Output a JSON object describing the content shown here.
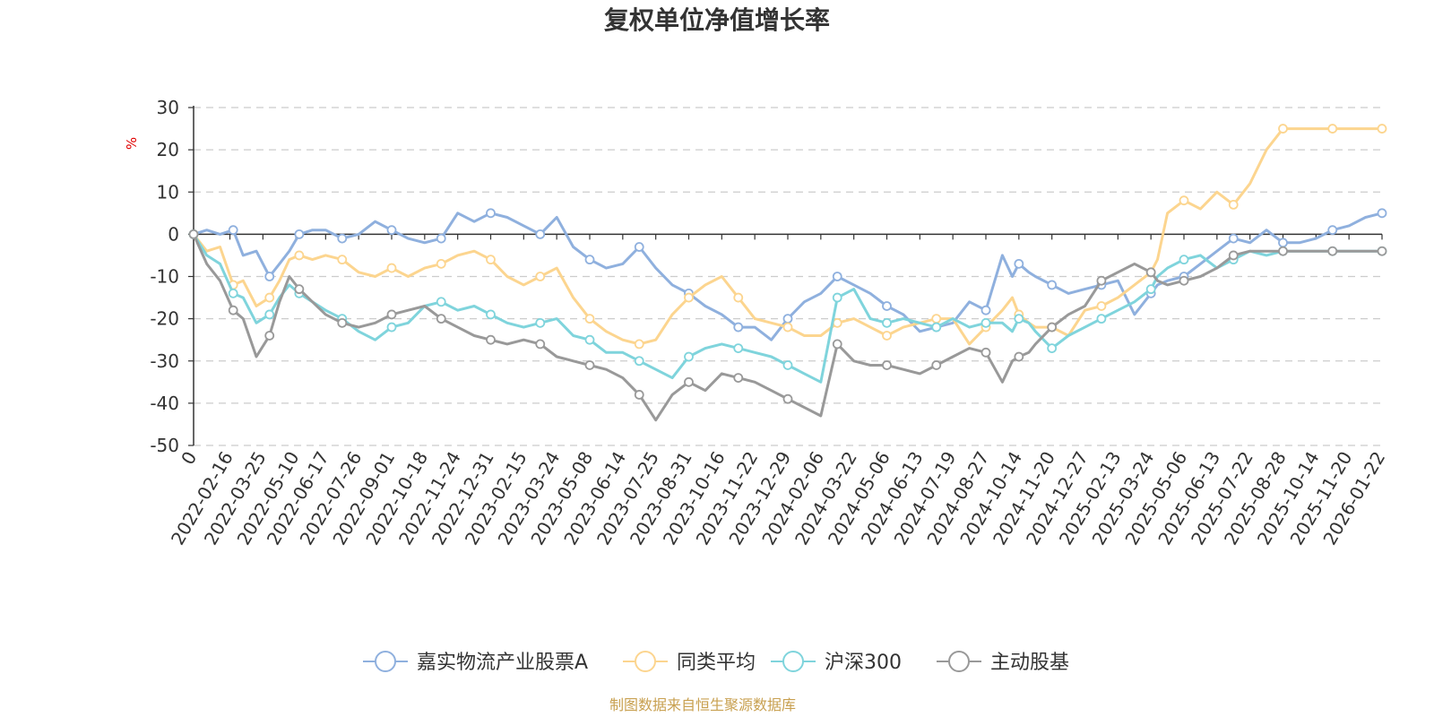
{
  "colors": {
    "jiashi": "#8fb0de",
    "peer": "#fcd58f",
    "hs300": "#7fd4dc",
    "active": "#999999",
    "grid": "#cccccc",
    "axis": "#333333",
    "unit": "#e00000",
    "source": "#c8a050"
  },
  "chart_data": {
    "type": "line",
    "title": "复权单位净值增长率",
    "ylabel": "%",
    "xlabel": "",
    "ylim": [
      -50,
      30
    ],
    "yticks": [
      "30",
      "20",
      "10",
      "0",
      "-10",
      "-20",
      "-30",
      "-40",
      "-50"
    ],
    "ytick_values": [
      30,
      20,
      10,
      0,
      -10,
      -20,
      -30,
      -40,
      -50
    ],
    "grid": true,
    "legend_position": "bottom-center",
    "categories": [
      "0",
      "2022-02-16",
      "2022-03-25",
      "2022-05-10",
      "2022-06-17",
      "2022-07-26",
      "2022-09-01",
      "2022-10-18",
      "2022-11-24",
      "2022-12-31",
      "2023-02-15",
      "2023-03-24",
      "2023-05-08",
      "2023-06-14",
      "2023-07-25",
      "2023-08-31",
      "2023-10-16",
      "2023-11-22",
      "2023-12-29",
      "2024-02-06",
      "2024-03-22",
      "2024-05-06",
      "2024-06-13",
      "2024-07-19",
      "2024-08-27",
      "2024-10-14",
      "2024-11-20",
      "2024-12-27",
      "2025-02-13",
      "2025-03-24",
      "2025-05-06",
      "2025-06-13",
      "2025-07-22",
      "2025-08-28",
      "2025-10-14",
      "2025-11-20",
      "2026-01-22"
    ],
    "x_positions": [
      0,
      1.1,
      2.1,
      3.1,
      4.0,
      5.0,
      6.0,
      7.0,
      8.0,
      9.0,
      10.0,
      11.0,
      12.0,
      13.0,
      14.0,
      15.0,
      16.0,
      17.0,
      18.0,
      19.0,
      20.0,
      21.0,
      22.0,
      23.0,
      24.0,
      25.0,
      26.0,
      27.0,
      28.0,
      29.0,
      30.0,
      31.0,
      32.0,
      33.0,
      34.0,
      35.0,
      36.0
    ],
    "series": [
      {
        "name": "嘉实物流产业股票A",
        "color_key": "jiashi",
        "x": [
          0,
          0.4,
          0.8,
          1.2,
          1.5,
          1.9,
          2.3,
          2.6,
          2.9,
          3.2,
          3.6,
          4.0,
          4.5,
          5.0,
          5.5,
          6.0,
          6.5,
          7.0,
          7.5,
          8.0,
          8.5,
          9.0,
          9.5,
          10.0,
          10.5,
          11.0,
          11.5,
          12.0,
          12.5,
          13.0,
          13.5,
          14.0,
          14.5,
          15.0,
          15.5,
          16.0,
          16.5,
          17.0,
          17.5,
          18.0,
          18.5,
          19.0,
          19.5,
          20.0,
          20.5,
          21.0,
          21.5,
          22.0,
          22.5,
          23.0,
          23.5,
          24.0,
          24.5,
          24.8,
          25.0,
          25.3,
          25.5,
          26.0,
          26.5,
          27.0,
          27.5,
          28.0,
          28.5,
          29.0,
          29.2,
          29.5,
          30.0,
          30.5,
          31.0,
          31.5,
          32.0,
          32.5,
          33.0,
          33.5,
          34.0,
          34.5,
          35.0,
          35.5,
          36.0
        ],
        "values": [
          0,
          1,
          0,
          1,
          -5,
          -4,
          -10,
          -7,
          -4,
          0,
          1,
          1,
          -1,
          0,
          3,
          1,
          -1,
          -2,
          -1,
          5,
          3,
          5,
          4,
          2,
          0,
          4,
          -3,
          -6,
          -8,
          -7,
          -3,
          -8,
          -12,
          -14,
          -17,
          -19,
          -22,
          -22,
          -25,
          -20,
          -16,
          -14,
          -10,
          -12,
          -14,
          -17,
          -19,
          -23,
          -22,
          -21,
          -16,
          -18,
          -5,
          -10,
          -7,
          -9,
          -10,
          -12,
          -14,
          -13,
          -12,
          -11,
          -19,
          -14,
          -12,
          -11,
          -10,
          -7,
          -4,
          -1,
          -2,
          1,
          -2,
          -2,
          -1,
          1,
          2,
          4,
          5
        ]
      },
      {
        "name": "同类平均",
        "color_key": "peer",
        "x": [
          0,
          0.4,
          0.8,
          1.2,
          1.5,
          1.9,
          2.3,
          2.6,
          2.9,
          3.2,
          3.6,
          4.0,
          4.5,
          5.0,
          5.5,
          6.0,
          6.5,
          7.0,
          7.5,
          8.0,
          8.5,
          9.0,
          9.5,
          10.0,
          10.5,
          11.0,
          11.5,
          12.0,
          12.5,
          13.0,
          13.5,
          14.0,
          14.5,
          15.0,
          15.5,
          16.0,
          16.5,
          17.0,
          17.5,
          18.0,
          18.5,
          19.0,
          19.5,
          20.0,
          20.5,
          21.0,
          21.5,
          22.0,
          22.5,
          23.0,
          23.5,
          24.0,
          24.5,
          24.8,
          25.0,
          25.3,
          25.5,
          26.0,
          26.5,
          27.0,
          27.5,
          28.0,
          28.5,
          29.0,
          29.2,
          29.5,
          30.0,
          30.5,
          31.0,
          31.5,
          32.0,
          32.5,
          33.0,
          33.5,
          34.0,
          34.5,
          35.0,
          35.5,
          36.0
        ],
        "values": [
          0,
          -4,
          -3,
          -12,
          -11,
          -17,
          -15,
          -11,
          -6,
          -5,
          -6,
          -5,
          -6,
          -9,
          -10,
          -8,
          -10,
          -8,
          -7,
          -5,
          -4,
          -6,
          -10,
          -12,
          -10,
          -8,
          -15,
          -20,
          -23,
          -25,
          -26,
          -25,
          -19,
          -15,
          -12,
          -10,
          -15,
          -20,
          -21,
          -22,
          -24,
          -24,
          -21,
          -20,
          -22,
          -24,
          -22,
          -21,
          -20,
          -20,
          -26,
          -22,
          -18,
          -15,
          -19,
          -21,
          -22,
          -22,
          -24,
          -18,
          -17,
          -15,
          -12,
          -9,
          -6,
          5,
          8,
          6,
          10,
          7,
          12,
          20,
          25,
          25,
          25,
          25,
          25,
          25,
          25
        ]
      },
      {
        "name": "沪深300",
        "color_key": "hs300",
        "x": [
          0,
          0.4,
          0.8,
          1.2,
          1.5,
          1.9,
          2.3,
          2.6,
          2.9,
          3.2,
          3.6,
          4.0,
          4.5,
          5.0,
          5.5,
          6.0,
          6.5,
          7.0,
          7.5,
          8.0,
          8.5,
          9.0,
          9.5,
          10.0,
          10.5,
          11.0,
          11.5,
          12.0,
          12.5,
          13.0,
          13.5,
          14.0,
          14.5,
          15.0,
          15.5,
          16.0,
          16.5,
          17.0,
          17.5,
          18.0,
          18.5,
          19.0,
          19.5,
          20.0,
          20.5,
          21.0,
          21.5,
          22.0,
          22.5,
          23.0,
          23.5,
          24.0,
          24.5,
          24.8,
          25.0,
          25.3,
          25.5,
          26.0,
          26.5,
          27.0,
          27.5,
          28.0,
          28.5,
          29.0,
          29.2,
          29.5,
          30.0,
          30.5,
          31.0,
          31.5,
          32.0,
          32.5,
          33.0,
          33.5,
          34.0,
          34.5,
          35.0,
          35.5,
          36.0
        ],
        "values": [
          0,
          -5,
          -7,
          -14,
          -15,
          -21,
          -19,
          -15,
          -12,
          -14,
          -16,
          -18,
          -20,
          -23,
          -25,
          -22,
          -21,
          -17,
          -16,
          -18,
          -17,
          -19,
          -21,
          -22,
          -21,
          -20,
          -24,
          -25,
          -28,
          -28,
          -30,
          -32,
          -34,
          -29,
          -27,
          -26,
          -27,
          -28,
          -29,
          -31,
          -33,
          -35,
          -15,
          -13,
          -20,
          -21,
          -20,
          -21,
          -22,
          -20,
          -22,
          -21,
          -21,
          -23,
          -20,
          -21,
          -23,
          -27,
          -24,
          -22,
          -20,
          -18,
          -16,
          -13,
          -10,
          -8,
          -6,
          -5,
          -8,
          -6,
          -4,
          -5,
          -4,
          -4,
          -4,
          -4,
          -4,
          -4,
          -4
        ]
      },
      {
        "name": "主动股基",
        "color_key": "active",
        "x": [
          0,
          0.4,
          0.8,
          1.2,
          1.5,
          1.9,
          2.3,
          2.6,
          2.9,
          3.2,
          3.6,
          4.0,
          4.5,
          5.0,
          5.5,
          6.0,
          6.5,
          7.0,
          7.5,
          8.0,
          8.5,
          9.0,
          9.5,
          10.0,
          10.5,
          11.0,
          11.5,
          12.0,
          12.5,
          13.0,
          13.5,
          14.0,
          14.5,
          15.0,
          15.5,
          16.0,
          16.5,
          17.0,
          17.5,
          18.0,
          18.5,
          19.0,
          19.5,
          20.0,
          20.5,
          21.0,
          21.5,
          22.0,
          22.5,
          23.0,
          23.5,
          24.0,
          24.5,
          24.8,
          25.0,
          25.3,
          25.5,
          26.0,
          26.5,
          27.0,
          27.5,
          28.0,
          28.5,
          29.0,
          29.2,
          29.5,
          30.0,
          30.5,
          31.0,
          31.5,
          32.0,
          32.5,
          33.0,
          33.5,
          34.0,
          34.5,
          35.0,
          35.5,
          36.0
        ],
        "values": [
          0,
          -7,
          -11,
          -18,
          -20,
          -29,
          -24,
          -16,
          -10,
          -13,
          -16,
          -19,
          -21,
          -22,
          -21,
          -19,
          -18,
          -17,
          -20,
          -22,
          -24,
          -25,
          -26,
          -25,
          -26,
          -29,
          -30,
          -31,
          -32,
          -34,
          -38,
          -44,
          -38,
          -35,
          -37,
          -33,
          -34,
          -35,
          -37,
          -39,
          -41,
          -43,
          -26,
          -30,
          -31,
          -31,
          -32,
          -33,
          -31,
          -29,
          -27,
          -28,
          -35,
          -30,
          -29,
          -28,
          -26,
          -22,
          -19,
          -17,
          -11,
          -9,
          -7,
          -9,
          -11,
          -12,
          -11,
          -10,
          -8,
          -5,
          -4,
          -4,
          -4,
          -4,
          -4,
          -4,
          -4,
          -4,
          -4
        ]
      }
    ]
  },
  "legend": {
    "items": [
      "嘉实物流产业股票A",
      "同类平均",
      "沪深300",
      "主动股基"
    ]
  },
  "footer": {
    "source": "制图数据来自恒生聚源数据库"
  }
}
